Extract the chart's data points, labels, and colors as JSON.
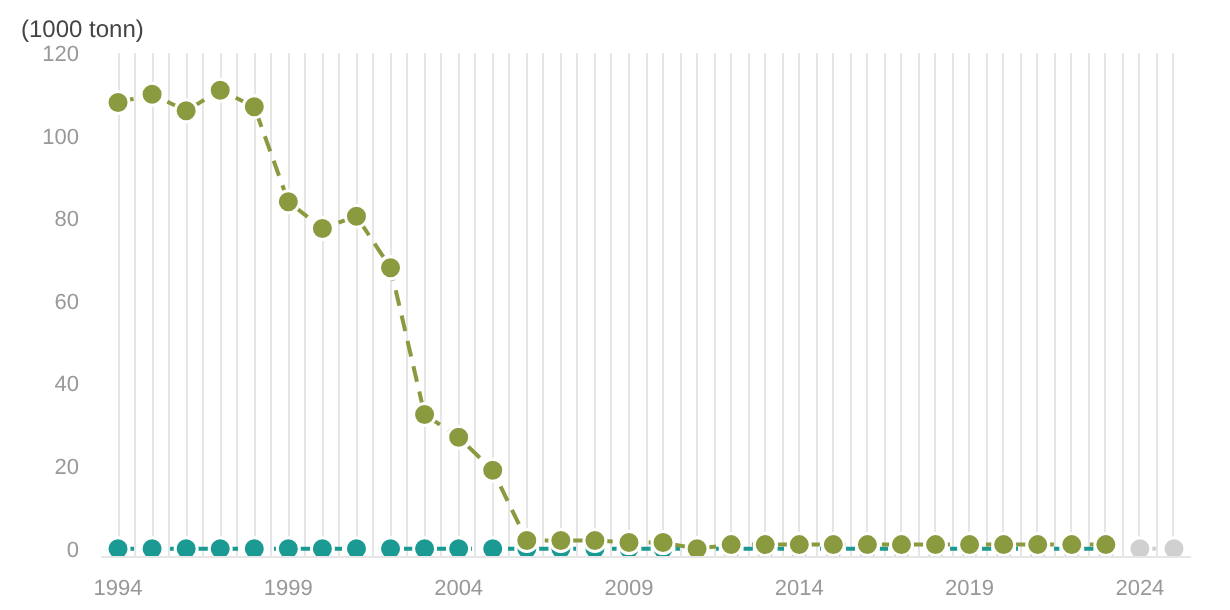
{
  "chart_data": {
    "type": "line",
    "ylabel": "(1000 tonn)",
    "x": [
      1994,
      1995,
      1996,
      1997,
      1998,
      1999,
      2000,
      2001,
      2002,
      2003,
      2004,
      2005,
      2006,
      2007,
      2008,
      2009,
      2010,
      2011,
      2012,
      2013,
      2014,
      2015,
      2016,
      2017,
      2018,
      2019,
      2020,
      2021,
      2022,
      2023
    ],
    "series": [
      {
        "color": "#8a9a3f",
        "values": [
          108,
          110,
          106,
          111,
          107,
          84,
          77.5,
          80.5,
          68,
          32.5,
          27,
          19,
          2,
          2,
          2,
          1.5,
          1.5,
          0,
          1,
          1,
          1,
          1,
          1,
          1,
          1,
          1,
          1,
          1,
          1,
          1
        ]
      },
      {
        "color": "#1a9a92",
        "values": [
          0,
          0,
          0,
          0,
          0,
          0,
          0,
          0,
          0,
          0,
          0,
          0,
          0,
          0,
          0,
          0,
          0,
          0,
          0,
          0,
          0,
          0,
          0,
          0,
          0,
          0,
          0,
          0,
          0,
          0
        ]
      },
      {
        "color": "#d0d0d0",
        "x": [
          2024,
          2025
        ],
        "values": [
          0,
          0
        ]
      }
    ],
    "xlim": [
      1993.5,
      2025.5
    ],
    "ylim": [
      -2,
      120
    ],
    "xticks": [
      1994,
      {
        "value": 1994.5,
        "label": null
      },
      {
        "value": 1995,
        "label": null
      },
      {
        "value": 1995.5,
        "label": null
      },
      {
        "value": 1996,
        "label": null
      },
      {
        "value": 1996.5,
        "label": null
      },
      {
        "value": 1997,
        "label": null
      },
      {
        "value": 1997.5,
        "label": null
      },
      {
        "value": 1998,
        "label": null
      },
      {
        "value": 1998.5,
        "label": null
      },
      1999,
      {
        "value": 1999.5,
        "label": null
      },
      {
        "value": 2000,
        "label": null
      },
      {
        "value": 2000.5,
        "label": null
      },
      {
        "value": 2001,
        "label": null
      },
      {
        "value": 2001.5,
        "label": null
      },
      {
        "value": 2002,
        "label": null
      },
      {
        "value": 2002.5,
        "label": null
      },
      {
        "value": 2003,
        "label": null
      },
      {
        "value": 2003.5,
        "label": null
      },
      2004,
      {
        "value": 2004.5,
        "label": null
      },
      {
        "value": 2005,
        "label": null
      },
      {
        "value": 2005.5,
        "label": null
      },
      {
        "value": 2006,
        "label": null
      },
      {
        "value": 2006.5,
        "label": null
      },
      {
        "value": 2007,
        "label": null
      },
      {
        "value": 2007.5,
        "label": null
      },
      {
        "value": 2008,
        "label": null
      },
      {
        "value": 2008.5,
        "label": null
      },
      2009,
      {
        "value": 2009.5,
        "label": null
      },
      {
        "value": 2010,
        "label": null
      },
      {
        "value": 2010.5,
        "label": null
      },
      {
        "value": 2011,
        "label": null
      },
      {
        "value": 2011.5,
        "label": null
      },
      {
        "value": 2012,
        "label": null
      },
      {
        "value": 2012.5,
        "label": null
      },
      {
        "value": 2013,
        "label": null
      },
      {
        "value": 2013.5,
        "label": null
      },
      2014,
      {
        "value": 2014.5,
        "label": null
      },
      {
        "value": 2015,
        "label": null
      },
      {
        "value": 2015.5,
        "label": null
      },
      {
        "value": 2016,
        "label": null
      },
      {
        "value": 2016.5,
        "label": null
      },
      {
        "value": 2017,
        "label": null
      },
      {
        "value": 2017.5,
        "label": null
      },
      {
        "value": 2018,
        "label": null
      },
      {
        "value": 2018.5,
        "label": null
      },
      2019,
      {
        "value": 2019.5,
        "label": null
      },
      {
        "value": 2020,
        "label": null
      },
      {
        "value": 2020.5,
        "label": null
      },
      {
        "value": 2021,
        "label": null
      },
      {
        "value": 2021.5,
        "label": null
      },
      {
        "value": 2022,
        "label": null
      },
      {
        "value": 2022.5,
        "label": null
      },
      {
        "value": 2023,
        "label": null
      },
      {
        "value": 2023.5,
        "label": null
      },
      2024,
      {
        "value": 2024.5,
        "label": null
      },
      {
        "value": 2025,
        "label": null
      }
    ],
    "yticks": [
      0,
      20,
      40,
      60,
      80,
      100,
      120
    ],
    "grid": "x",
    "marker": "circle",
    "line_style": "dashed"
  }
}
